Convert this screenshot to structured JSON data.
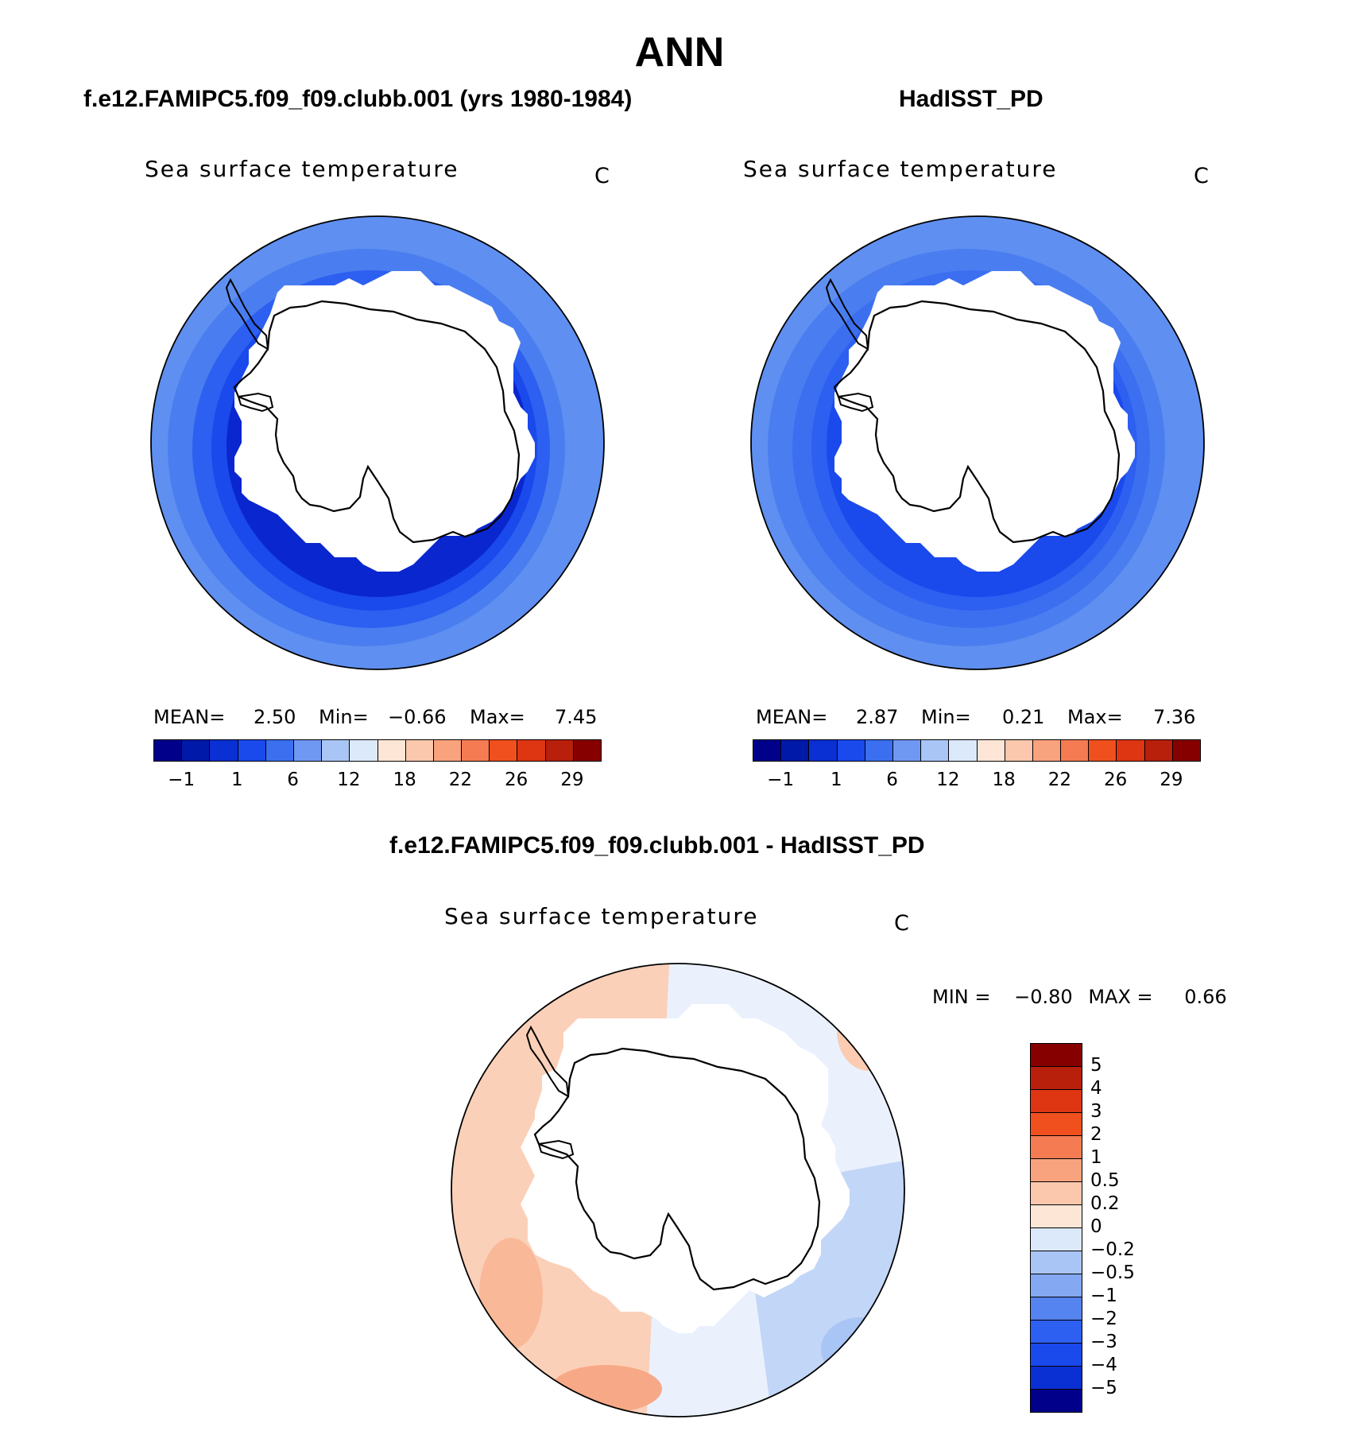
{
  "title": "ANN",
  "panels": [
    {
      "subtitle": "f.e12.FAMIPC5.f09_f09.clubb.001 (yrs 1980-1984)",
      "variable_label": "Sea surface temperature",
      "unit": "C",
      "stats": {
        "mean_label": "MEAN=",
        "mean": "2.50",
        "min_label": "Min=",
        "min": "−0.66",
        "max_label": "Max=",
        "max": "7.45"
      },
      "ring_colors": [
        "#0a26cf",
        "#1a49ec",
        "#2d5ff0",
        "#4a7ef0",
        "#5f8ff0"
      ]
    },
    {
      "subtitle": "HadISST_PD",
      "variable_label": "Sea surface temperature",
      "unit": "C",
      "stats": {
        "mean_label": "MEAN=",
        "mean": "2.87",
        "min_label": "Min=",
        "min": "0.21",
        "max_label": "Max=",
        "max": "7.36"
      },
      "ring_colors": [
        "#1a49ec",
        "#2d5ff0",
        "#3b6ff0",
        "#4a7ef0",
        "#5f8ff0"
      ]
    }
  ],
  "sst_colorbar": {
    "colors": [
      "#00008a",
      "#0019a8",
      "#0a2fd2",
      "#1a49ec",
      "#3b6ff0",
      "#6f98f2",
      "#a9c5f5",
      "#dbe9fb",
      "#fde6d6",
      "#fbc7ad",
      "#f9a27e",
      "#f47b52",
      "#f0501e",
      "#de3512",
      "#b8200c",
      "#870000"
    ],
    "tick_labels": [
      "−1",
      "1",
      "6",
      "12",
      "18",
      "22",
      "26",
      "29"
    ]
  },
  "difference": {
    "subtitle": "f.e12.FAMIPC5.f09_f09.clubb.001 - HadISST_PD",
    "variable_label": "Sea surface temperature",
    "unit": "C",
    "min_label": "MIN =",
    "min": "−0.80",
    "max_label": "MAX =",
    "max": "0.66",
    "colorbar": {
      "colors": [
        "#870000",
        "#b8200c",
        "#de3512",
        "#f0501e",
        "#f47b52",
        "#f9a27e",
        "#fbc7ad",
        "#fde6d6",
        "#dbe9fb",
        "#a9c5f5",
        "#84a8f2",
        "#5583ef",
        "#2d5ff0",
        "#1a49ec",
        "#0a2fd2",
        "#00008a"
      ],
      "tick_labels": [
        "5",
        "4",
        "3",
        "2",
        "1",
        "0.5",
        "0.2",
        "0",
        "−0.2",
        "−0.5",
        "−1",
        "−2",
        "−3",
        "−4",
        "−5"
      ]
    },
    "west_color": "#fbd0b8",
    "east_color": "#c2d6f7"
  }
}
